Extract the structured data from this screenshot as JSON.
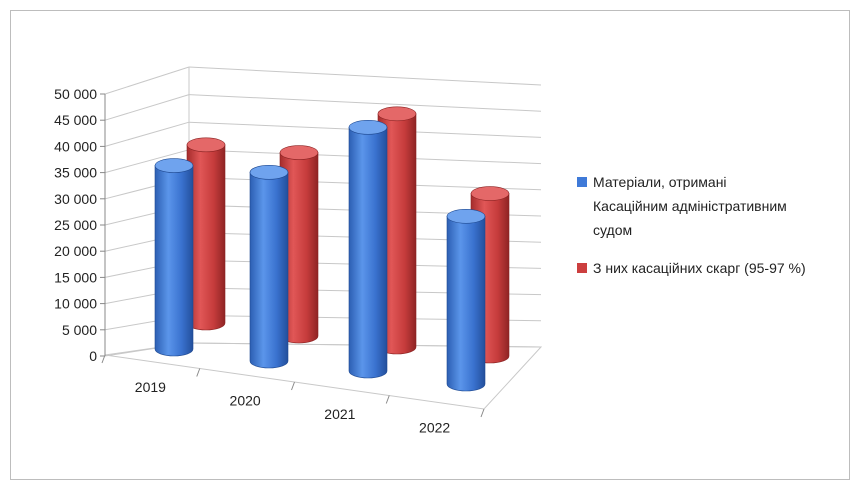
{
  "chart_data": {
    "type": "bar",
    "style": "3d-cylinder",
    "categories": [
      "2019",
      "2020",
      "2021",
      "2022"
    ],
    "series": [
      {
        "name": "Матеріали, отримані Касаційним адміністративним судом",
        "values": [
          35000,
          36000,
          46500,
          32000
        ],
        "color": "#3f7ad8"
      },
      {
        "name": "З них касаційних скарг (95-97 %)",
        "values": [
          34000,
          35000,
          44500,
          31000
        ],
        "color": "#cc3f3f"
      }
    ],
    "y_ticks": [
      "50 000",
      "45 000",
      "40 000",
      "35 000",
      "30 000",
      "25 000",
      "20 000",
      "15 000",
      "10 000",
      "5 000",
      "0"
    ],
    "ylim": [
      0,
      50000
    ],
    "grid": true,
    "legend_position": "right",
    "legend_lines": [
      [
        "Матеріали, отримані",
        "Касаційним адміністративним",
        "судом"
      ],
      [
        "З них касаційних скарг (95-97 %)"
      ]
    ]
  }
}
